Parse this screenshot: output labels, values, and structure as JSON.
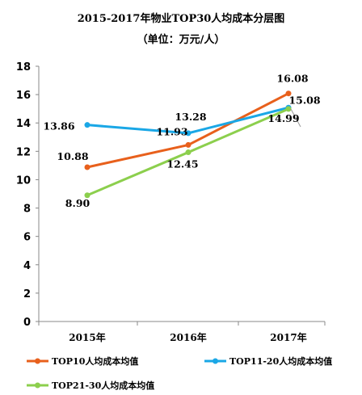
{
  "chart_data": {
    "type": "line",
    "title": "2015-2017年物业TOP30人均成本分层图",
    "subtitle": "（单位：万元/人）",
    "categories": [
      "2015年",
      "2016年",
      "2017年"
    ],
    "ylim": [
      0,
      18
    ],
    "yticks": [
      "0",
      "2",
      "4",
      "6",
      "8",
      "10",
      "12",
      "14",
      "16",
      "18"
    ],
    "grid": false,
    "legend_position": "bottom",
    "series": [
      {
        "name": "TOP10人均成本均值",
        "color": "#e8601c",
        "values": [
          10.88,
          12.45,
          16.08
        ],
        "labels": [
          "10.88",
          "12.45",
          "16.08"
        ]
      },
      {
        "name": "TOP11-20人均成本均值",
        "color": "#1aa7e6",
        "values": [
          13.86,
          13.28,
          15.08
        ],
        "labels": [
          "13.86",
          "13.28",
          "15.08"
        ]
      },
      {
        "name": "TOP21-30人均成本均值",
        "color": "#8ccf4d",
        "values": [
          8.9,
          11.93,
          14.99
        ],
        "labels": [
          "8.90",
          "11.93",
          "14.99"
        ]
      }
    ]
  }
}
